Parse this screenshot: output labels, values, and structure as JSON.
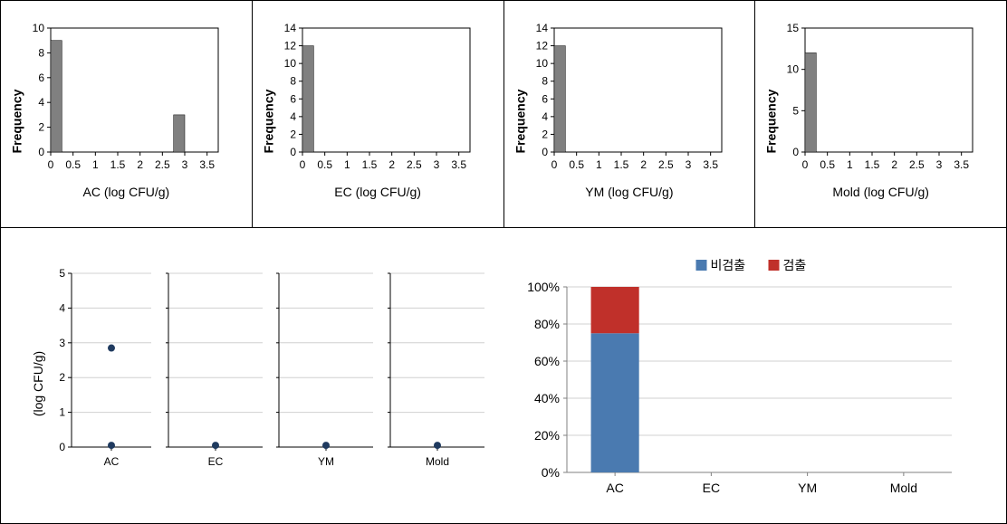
{
  "top_charts": [
    {
      "id": "ac",
      "type": "bar",
      "ylabel": "Frequency",
      "xlabel": "AC (log CFU/g)",
      "bar_color": "#808080",
      "line_color": "#000000",
      "bg_color": "#ffffff",
      "label_fontsize": 14,
      "tick_fontsize": 12,
      "xlim": [
        0,
        3.75
      ],
      "ylim": [
        0,
        10
      ],
      "xticks": [
        0,
        0.5,
        1,
        1.5,
        2,
        2.5,
        3,
        3.5
      ],
      "yticks": [
        0,
        2,
        4,
        6,
        8,
        10
      ],
      "bars": [
        {
          "x": 0.125,
          "h": 9
        },
        {
          "x": 2.875,
          "h": 3
        }
      ],
      "bar_width": 0.25
    },
    {
      "id": "ec",
      "type": "bar",
      "ylabel": "Frequency",
      "xlabel": "EC (log CFU/g)",
      "bar_color": "#808080",
      "line_color": "#000000",
      "bg_color": "#ffffff",
      "label_fontsize": 14,
      "tick_fontsize": 12,
      "xlim": [
        0,
        3.75
      ],
      "ylim": [
        0,
        14
      ],
      "xticks": [
        0,
        0.5,
        1,
        1.5,
        2,
        2.5,
        3,
        3.5
      ],
      "yticks": [
        0,
        2,
        4,
        6,
        8,
        10,
        12,
        14
      ],
      "bars": [
        {
          "x": 0.125,
          "h": 12
        }
      ],
      "bar_width": 0.25
    },
    {
      "id": "ym",
      "type": "bar",
      "ylabel": "Frequency",
      "xlabel": "YM (log CFU/g)",
      "bar_color": "#808080",
      "line_color": "#000000",
      "bg_color": "#ffffff",
      "label_fontsize": 14,
      "tick_fontsize": 12,
      "xlim": [
        0,
        3.75
      ],
      "ylim": [
        0,
        14
      ],
      "xticks": [
        0,
        0.5,
        1,
        1.5,
        2,
        2.5,
        3,
        3.5
      ],
      "yticks": [
        0,
        2,
        4,
        6,
        8,
        10,
        12,
        14
      ],
      "bars": [
        {
          "x": 0.125,
          "h": 12
        }
      ],
      "bar_width": 0.25
    },
    {
      "id": "mold",
      "type": "bar",
      "ylabel": "Frequency",
      "xlabel": "Mold (log CFU/g)",
      "bar_color": "#808080",
      "line_color": "#000000",
      "bg_color": "#ffffff",
      "label_fontsize": 14,
      "tick_fontsize": 12,
      "xlim": [
        0,
        3.75
      ],
      "ylim": [
        0,
        15
      ],
      "xticks": [
        0,
        0.5,
        1,
        1.5,
        2,
        2.5,
        3,
        3.5
      ],
      "yticks": [
        0,
        5,
        10,
        15
      ],
      "bars": [
        {
          "x": 0.125,
          "h": 12
        }
      ],
      "bar_width": 0.25
    }
  ],
  "scatter_group": {
    "type": "scatter",
    "ylabel": "(log CFU/g)",
    "ylim": [
      0,
      5
    ],
    "yticks": [
      0,
      1,
      2,
      3,
      4,
      5
    ],
    "marker_color": "#1f3a5f",
    "line_color": "#000000",
    "grid_color": "#d0d0d0",
    "label_fontsize": 14,
    "tick_fontsize": 12,
    "panels": [
      {
        "label": "AC",
        "points": [
          0.05,
          2.85
        ]
      },
      {
        "label": "EC",
        "points": [
          0.05
        ]
      },
      {
        "label": "YM",
        "points": [
          0.05
        ]
      },
      {
        "label": "Mold",
        "points": [
          0.05
        ]
      }
    ]
  },
  "stacked_chart": {
    "type": "stacked_bar",
    "legend": [
      {
        "label": "비검출",
        "color": "#4a7ab0"
      },
      {
        "label": "검출",
        "color": "#c0302a"
      }
    ],
    "ylim": [
      0,
      100
    ],
    "yticks": [
      0,
      20,
      40,
      60,
      80,
      100
    ],
    "ytick_suffix": "%",
    "grid_color": "#d0d0d0",
    "axis_color": "#808080",
    "label_fontsize": 14,
    "tick_fontsize": 14,
    "categories": [
      "AC",
      "EC",
      "YM",
      "Mold"
    ],
    "data": [
      {
        "cat": "AC",
        "lower": 75,
        "upper": 25
      },
      {
        "cat": "EC"
      },
      {
        "cat": "YM"
      },
      {
        "cat": "Mold"
      }
    ],
    "bar_width": 0.5
  }
}
